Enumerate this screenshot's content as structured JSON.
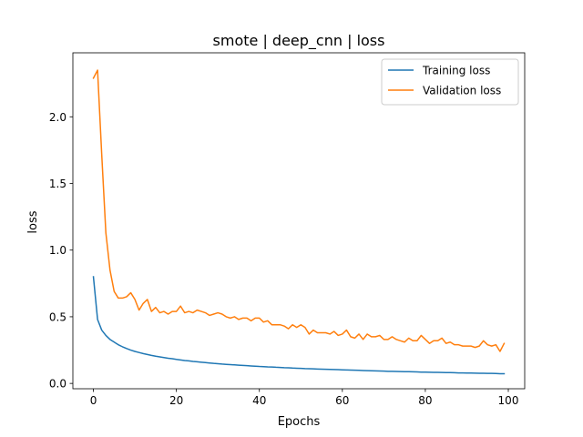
{
  "chart_data": {
    "type": "line",
    "title": "smote | deep_cnn | loss",
    "xlabel": "Epochs",
    "ylabel": "loss",
    "xlim": [
      -4.95,
      103.95
    ],
    "ylim": [
      -0.04,
      2.48
    ],
    "xticks": [
      0,
      20,
      40,
      60,
      80,
      100
    ],
    "xtick_labels": [
      "0",
      "20",
      "40",
      "60",
      "80",
      "100"
    ],
    "yticks": [
      0.0,
      0.5,
      1.0,
      1.5,
      2.0
    ],
    "ytick_labels": [
      "0.0",
      "0.5",
      "1.0",
      "1.5",
      "2.0"
    ],
    "grid": false,
    "legend_position": "upper right",
    "series": [
      {
        "name": "Training loss",
        "color": "#1f77b4",
        "x": [
          0,
          1,
          2,
          3,
          4,
          5,
          6,
          7,
          8,
          9,
          10,
          11,
          12,
          13,
          14,
          15,
          16,
          17,
          18,
          19,
          20,
          21,
          22,
          23,
          24,
          25,
          26,
          27,
          28,
          29,
          30,
          31,
          32,
          33,
          34,
          35,
          36,
          37,
          38,
          39,
          40,
          41,
          42,
          43,
          44,
          45,
          46,
          47,
          48,
          49,
          50,
          51,
          52,
          53,
          54,
          55,
          56,
          57,
          58,
          59,
          60,
          61,
          62,
          63,
          64,
          65,
          66,
          67,
          68,
          69,
          70,
          71,
          72,
          73,
          74,
          75,
          76,
          77,
          78,
          79,
          80,
          81,
          82,
          83,
          84,
          85,
          86,
          87,
          88,
          89,
          90,
          91,
          92,
          93,
          94,
          95,
          96,
          97,
          98,
          99
        ],
        "values": [
          0.8,
          0.48,
          0.4,
          0.36,
          0.33,
          0.31,
          0.29,
          0.275,
          0.262,
          0.25,
          0.24,
          0.232,
          0.224,
          0.217,
          0.21,
          0.204,
          0.199,
          0.194,
          0.189,
          0.185,
          0.18,
          0.176,
          0.172,
          0.169,
          0.165,
          0.162,
          0.159,
          0.156,
          0.153,
          0.15,
          0.148,
          0.145,
          0.143,
          0.141,
          0.139,
          0.137,
          0.135,
          0.133,
          0.131,
          0.129,
          0.127,
          0.126,
          0.124,
          0.123,
          0.121,
          0.12,
          0.118,
          0.117,
          0.115,
          0.114,
          0.113,
          0.111,
          0.11,
          0.109,
          0.108,
          0.107,
          0.106,
          0.105,
          0.104,
          0.103,
          0.102,
          0.101,
          0.1,
          0.099,
          0.098,
          0.097,
          0.096,
          0.095,
          0.094,
          0.093,
          0.092,
          0.091,
          0.091,
          0.09,
          0.089,
          0.088,
          0.088,
          0.087,
          0.086,
          0.085,
          0.085,
          0.084,
          0.083,
          0.083,
          0.082,
          0.081,
          0.081,
          0.08,
          0.079,
          0.079,
          0.078,
          0.078,
          0.077,
          0.076,
          0.076,
          0.075,
          0.075,
          0.074,
          0.073,
          0.073
        ]
      },
      {
        "name": "Validation loss",
        "color": "#ff7f0e",
        "x": [
          0,
          1,
          2,
          3,
          4,
          5,
          6,
          7,
          8,
          9,
          10,
          11,
          12,
          13,
          14,
          15,
          16,
          17,
          18,
          19,
          20,
          21,
          22,
          23,
          24,
          25,
          26,
          27,
          28,
          29,
          30,
          31,
          32,
          33,
          34,
          35,
          36,
          37,
          38,
          39,
          40,
          41,
          42,
          43,
          44,
          45,
          46,
          47,
          48,
          49,
          50,
          51,
          52,
          53,
          54,
          55,
          56,
          57,
          58,
          59,
          60,
          61,
          62,
          63,
          64,
          65,
          66,
          67,
          68,
          69,
          70,
          71,
          72,
          73,
          74,
          75,
          76,
          77,
          78,
          79,
          80,
          81,
          82,
          83,
          84,
          85,
          86,
          87,
          88,
          89,
          90,
          91,
          92,
          93,
          94,
          95,
          96,
          97,
          98,
          99
        ],
        "values": [
          2.29,
          2.35,
          1.72,
          1.13,
          0.85,
          0.69,
          0.64,
          0.64,
          0.65,
          0.68,
          0.63,
          0.55,
          0.6,
          0.63,
          0.54,
          0.57,
          0.53,
          0.54,
          0.52,
          0.54,
          0.54,
          0.58,
          0.53,
          0.54,
          0.53,
          0.55,
          0.54,
          0.53,
          0.51,
          0.52,
          0.53,
          0.52,
          0.5,
          0.49,
          0.5,
          0.48,
          0.49,
          0.49,
          0.47,
          0.49,
          0.49,
          0.46,
          0.47,
          0.44,
          0.44,
          0.44,
          0.43,
          0.41,
          0.44,
          0.42,
          0.44,
          0.42,
          0.37,
          0.4,
          0.38,
          0.38,
          0.38,
          0.37,
          0.39,
          0.36,
          0.37,
          0.4,
          0.35,
          0.34,
          0.37,
          0.33,
          0.37,
          0.35,
          0.35,
          0.36,
          0.33,
          0.33,
          0.35,
          0.33,
          0.32,
          0.31,
          0.34,
          0.32,
          0.32,
          0.36,
          0.33,
          0.3,
          0.32,
          0.32,
          0.34,
          0.3,
          0.31,
          0.29,
          0.29,
          0.28,
          0.28,
          0.28,
          0.27,
          0.28,
          0.32,
          0.29,
          0.28,
          0.29,
          0.24,
          0.3
        ]
      }
    ]
  }
}
